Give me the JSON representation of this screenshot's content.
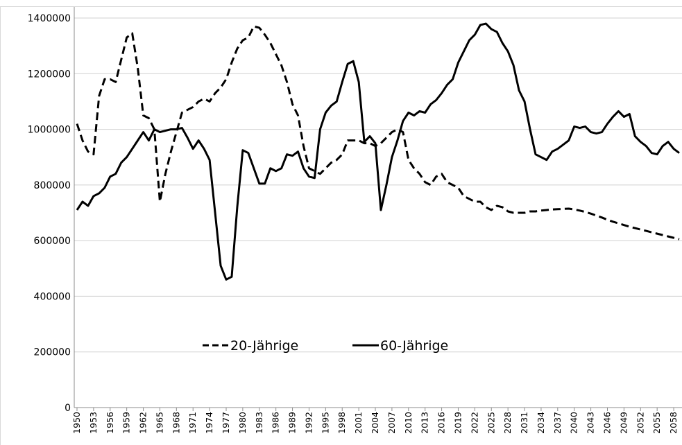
{
  "chart_data": {
    "type": "line",
    "x": [
      1950,
      1951,
      1952,
      1953,
      1954,
      1955,
      1956,
      1957,
      1958,
      1959,
      1960,
      1961,
      1962,
      1963,
      1964,
      1965,
      1966,
      1967,
      1968,
      1969,
      1970,
      1971,
      1972,
      1973,
      1974,
      1975,
      1976,
      1977,
      1978,
      1979,
      1980,
      1981,
      1982,
      1983,
      1984,
      1985,
      1986,
      1987,
      1988,
      1989,
      1990,
      1991,
      1992,
      1993,
      1994,
      1995,
      1996,
      1997,
      1998,
      1999,
      2000,
      2001,
      2002,
      2003,
      2004,
      2005,
      2006,
      2007,
      2008,
      2009,
      2010,
      2011,
      2012,
      2013,
      2014,
      2015,
      2016,
      2017,
      2018,
      2019,
      2020,
      2021,
      2022,
      2023,
      2024,
      2025,
      2026,
      2027,
      2028,
      2029,
      2030,
      2031,
      2032,
      2033,
      2034,
      2035,
      2036,
      2037,
      2038,
      2039,
      2040,
      2041,
      2042,
      2043,
      2044,
      2045,
      2046,
      2047,
      2048,
      2049,
      2050,
      2051,
      2052,
      2053,
      2054,
      2055,
      2056,
      2057,
      2058,
      2059
    ],
    "series": [
      {
        "name": "20-Jährige",
        "color": "#000000",
        "dash": "dashed",
        "values": [
          1020000,
          960000,
          920000,
          910000,
          1120000,
          1180000,
          1180000,
          1170000,
          1250000,
          1330000,
          1345000,
          1220000,
          1050000,
          1040000,
          1000000,
          740000,
          840000,
          920000,
          990000,
          1060000,
          1070000,
          1080000,
          1100000,
          1110000,
          1100000,
          1130000,
          1150000,
          1180000,
          1240000,
          1290000,
          1320000,
          1330000,
          1370000,
          1365000,
          1340000,
          1310000,
          1270000,
          1230000,
          1170000,
          1090000,
          1050000,
          940000,
          860000,
          850000,
          840000,
          860000,
          880000,
          890000,
          910000,
          960000,
          960000,
          960000,
          950000,
          950000,
          940000,
          950000,
          970000,
          990000,
          1000000,
          990000,
          890000,
          860000,
          840000,
          810000,
          800000,
          830000,
          840000,
          810000,
          800000,
          790000,
          760000,
          750000,
          740000,
          740000,
          720000,
          710000,
          725000,
          720000,
          705000,
          700000,
          700000,
          700000,
          705000,
          705000,
          708000,
          710000,
          712000,
          713000,
          714000,
          715000,
          712000,
          708000,
          703000,
          697000,
          690000,
          683000,
          675000,
          668000,
          662000,
          656000,
          650000,
          645000,
          640000,
          635000,
          630000,
          625000,
          620000,
          615000,
          610000,
          605000
        ]
      },
      {
        "name": "60-Jährige",
        "color": "#000000",
        "dash": "solid",
        "values": [
          710000,
          740000,
          725000,
          760000,
          770000,
          790000,
          830000,
          840000,
          880000,
          900000,
          930000,
          960000,
          990000,
          960000,
          1000000,
          990000,
          995000,
          1000000,
          1000000,
          1005000,
          970000,
          930000,
          960000,
          930000,
          890000,
          700000,
          510000,
          460000,
          470000,
          720000,
          925000,
          915000,
          860000,
          805000,
          805000,
          860000,
          850000,
          860000,
          910000,
          905000,
          920000,
          860000,
          830000,
          825000,
          1000000,
          1060000,
          1085000,
          1100000,
          1170000,
          1235000,
          1245000,
          1170000,
          955000,
          975000,
          950000,
          710000,
          800000,
          900000,
          960000,
          1030000,
          1060000,
          1050000,
          1065000,
          1060000,
          1090000,
          1105000,
          1130000,
          1160000,
          1180000,
          1240000,
          1280000,
          1320000,
          1340000,
          1375000,
          1380000,
          1360000,
          1350000,
          1310000,
          1280000,
          1230000,
          1140000,
          1100000,
          1000000,
          910000,
          900000,
          890000,
          920000,
          930000,
          945000,
          960000,
          1010000,
          1005000,
          1010000,
          990000,
          985000,
          990000,
          1020000,
          1045000,
          1065000,
          1045000,
          1055000,
          975000,
          955000,
          940000,
          915000,
          910000,
          940000,
          955000,
          930000,
          915000
        ]
      }
    ],
    "xlim": [
      1949.5,
      2059.5
    ],
    "xticks": [
      1950,
      1953,
      1956,
      1959,
      1962,
      1965,
      1968,
      1971,
      1974,
      1977,
      1980,
      1983,
      1986,
      1989,
      1992,
      1995,
      1998,
      2001,
      2004,
      2007,
      2010,
      2013,
      2016,
      2019,
      2022,
      2025,
      2028,
      2031,
      2034,
      2037,
      2040,
      2043,
      2046,
      2049,
      2052,
      2055,
      2058
    ],
    "ylim": [
      0,
      1400000
    ],
    "yticks": [
      0,
      200000,
      400000,
      600000,
      800000,
      1000000,
      1200000,
      1400000
    ],
    "grid": true,
    "legend": "lower center"
  }
}
